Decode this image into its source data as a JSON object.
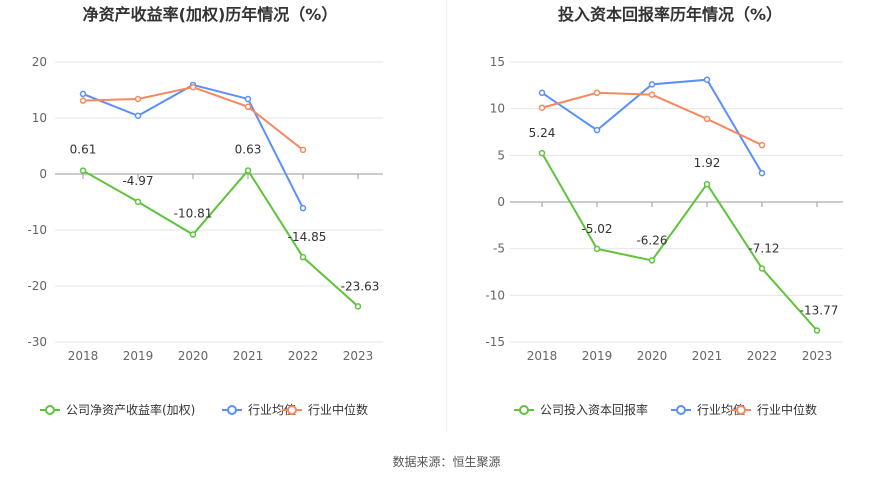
{
  "source": "数据来源：恒生聚源",
  "chart_data": [
    {
      "type": "line",
      "title": "净资产收益率(加权)历年情况（%）",
      "categories": [
        "2018",
        "2019",
        "2020",
        "2021",
        "2022",
        "2023"
      ],
      "ylim": [
        -30,
        20
      ],
      "yticks": [
        20,
        10,
        0,
        -10,
        -20,
        -30
      ],
      "grid": true,
      "legend_position": "bottom",
      "series": [
        {
          "name": "公司净资产收益率(加权)",
          "color": "#5fc33c",
          "values": [
            0.61,
            -4.97,
            -10.81,
            0.63,
            -14.85,
            -23.63
          ],
          "labels": [
            "0.61",
            "-4.97",
            "-10.81",
            "0.63",
            "-14.85",
            "-23.63"
          ]
        },
        {
          "name": "行业均值",
          "color": "#5b8ff9",
          "values": [
            14.3,
            10.4,
            15.9,
            13.4,
            -6.1,
            null
          ]
        },
        {
          "name": "行业中位数",
          "color": "#f5895f",
          "values": [
            13.1,
            13.4,
            15.5,
            12.0,
            4.3,
            null
          ]
        }
      ]
    },
    {
      "type": "line",
      "title": "投入资本回报率历年情况（%）",
      "categories": [
        "2018",
        "2019",
        "2020",
        "2021",
        "2022",
        "2023"
      ],
      "ylim": [
        -15,
        15
      ],
      "yticks": [
        15,
        10,
        5,
        0,
        -5,
        -10,
        -15
      ],
      "grid": true,
      "legend_position": "bottom",
      "series": [
        {
          "name": "公司投入资本回报率",
          "color": "#5fc33c",
          "values": [
            5.24,
            -5.02,
            -6.26,
            1.92,
            -7.12,
            -13.77
          ],
          "labels": [
            "5.24",
            "-5.02",
            "-6.26",
            "1.92",
            "-7.12",
            "-13.77"
          ]
        },
        {
          "name": "行业均值",
          "color": "#5b8ff9",
          "values": [
            11.7,
            7.7,
            12.6,
            13.1,
            3.1,
            null
          ]
        },
        {
          "name": "行业中位数",
          "color": "#f5895f",
          "values": [
            10.1,
            11.7,
            11.5,
            8.9,
            6.1,
            null
          ]
        }
      ]
    }
  ]
}
